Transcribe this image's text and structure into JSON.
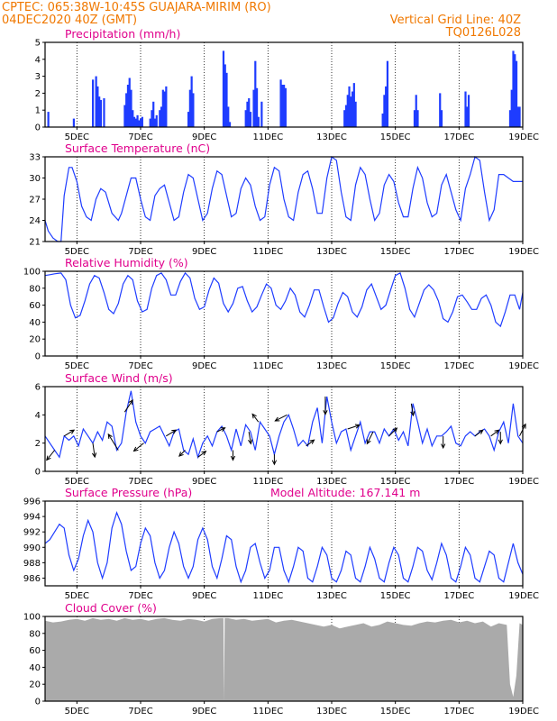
{
  "header": {
    "line1_left": "CPTEC:   065:38W-10:45S   GUAJARA-MIRIM (RO)",
    "line2_left": "04DEC2020 40Z (GMT)",
    "line2_right": "Vertical Grid Line: 40Z",
    "line3_right": "TQ0126L028"
  },
  "colors": {
    "header": "#f07800",
    "title": "#e0008c",
    "series": "#1e3cff",
    "cloud": "#aaaaaa",
    "wind_arrow": "#000000"
  },
  "x_axis": {
    "start_day": 4,
    "end_day": 19,
    "tick_labels": [
      "5DEC",
      "7DEC",
      "9DEC",
      "11DEC",
      "13DEC",
      "15DEC",
      "17DEC",
      "19DEC"
    ],
    "tick_days": [
      5,
      7,
      9,
      11,
      13,
      15,
      17,
      19
    ]
  },
  "chart_data": [
    {
      "type": "bar",
      "title": "Precipitation (mm/h)",
      "ylim": [
        0,
        5
      ],
      "yticks": [
        "0",
        "1",
        "2",
        "3",
        "4",
        "5"
      ],
      "grid": true,
      "x": [
        4.1,
        4.9,
        5.5,
        5.6,
        5.65,
        5.7,
        5.75,
        5.85,
        6.5,
        6.55,
        6.6,
        6.65,
        6.7,
        6.75,
        6.8,
        6.85,
        6.9,
        6.95,
        7.0,
        7.05,
        7.3,
        7.35,
        7.4,
        7.45,
        7.5,
        7.6,
        7.65,
        7.7,
        7.75,
        7.8,
        8.5,
        8.55,
        8.6,
        8.65,
        9.6,
        9.65,
        9.7,
        9.75,
        9.8,
        10.3,
        10.35,
        10.4,
        10.45,
        10.55,
        10.6,
        10.65,
        10.7,
        10.8,
        11.4,
        11.45,
        11.5,
        11.55,
        13.4,
        13.45,
        13.5,
        13.55,
        13.6,
        13.65,
        13.7,
        13.75,
        14.6,
        14.65,
        14.7,
        14.75,
        15.6,
        15.65,
        15.7,
        16.4,
        16.45,
        17.2,
        17.25,
        17.3,
        18.6,
        18.65,
        18.7,
        18.75,
        18.8,
        18.85,
        18.9
      ],
      "values": [
        0.9,
        0.5,
        2.8,
        3.0,
        2.4,
        1.8,
        1.6,
        1.7,
        1.3,
        2.0,
        2.5,
        2.9,
        2.2,
        1.0,
        0.6,
        0.5,
        0.7,
        0.4,
        0.5,
        0.6,
        0.5,
        1.0,
        1.5,
        0.5,
        0.7,
        1.0,
        1.2,
        2.2,
        2.1,
        2.4,
        0.9,
        2.2,
        3.0,
        2.0,
        4.5,
        3.7,
        3.2,
        1.2,
        0.3,
        1.0,
        1.5,
        1.7,
        0.9,
        2.2,
        3.9,
        2.3,
        0.6,
        1.5,
        2.8,
        2.5,
        2.5,
        2.3,
        1.0,
        1.3,
        1.9,
        2.4,
        1.8,
        2.1,
        2.6,
        1.5,
        0.8,
        1.9,
        2.4,
        3.9,
        1.0,
        1.9,
        1.0,
        2.0,
        1.0,
        2.1,
        1.2,
        1.9,
        1.0,
        2.2,
        4.5,
        4.3,
        3.9,
        1.2,
        1.2
      ]
    },
    {
      "type": "line",
      "title": "Surface Temperature (nC)",
      "ylim": [
        21,
        33
      ],
      "yticks": [
        "21",
        "24",
        "27",
        "30",
        "33"
      ],
      "grid": true,
      "x": [
        4.0,
        4.1,
        4.25,
        4.4,
        4.5,
        4.6,
        4.75,
        4.85,
        5.0,
        5.15,
        5.3,
        5.45,
        5.6,
        5.75,
        5.9,
        6.1,
        6.3,
        6.4,
        6.55,
        6.7,
        6.85,
        7.0,
        7.15,
        7.3,
        7.45,
        7.6,
        7.75,
        7.9,
        8.05,
        8.2,
        8.35,
        8.5,
        8.65,
        8.8,
        8.95,
        9.1,
        9.25,
        9.4,
        9.55,
        9.7,
        9.85,
        10.0,
        10.15,
        10.3,
        10.45,
        10.6,
        10.75,
        10.9,
        11.05,
        11.2,
        11.35,
        11.5,
        11.65,
        11.8,
        11.95,
        12.1,
        12.25,
        12.4,
        12.55,
        12.7,
        12.85,
        13.0,
        13.15,
        13.3,
        13.45,
        13.6,
        13.75,
        13.9,
        14.05,
        14.2,
        14.35,
        14.5,
        14.65,
        14.8,
        14.95,
        15.1,
        15.25,
        15.4,
        15.55,
        15.7,
        15.85,
        16.0,
        16.15,
        16.3,
        16.45,
        16.6,
        16.75,
        16.9,
        17.05,
        17.2,
        17.35,
        17.5,
        17.65,
        17.8,
        17.95,
        18.1,
        18.25,
        18.4,
        18.55,
        18.7,
        18.85,
        19.0
      ],
      "values": [
        24.0,
        22.5,
        21.5,
        21.0,
        21.0,
        27.5,
        31.5,
        31.5,
        29.5,
        26.0,
        24.5,
        24.0,
        27.0,
        28.5,
        28.0,
        25.0,
        24.0,
        25.0,
        27.5,
        30.0,
        30.0,
        27.0,
        24.5,
        24.0,
        27.5,
        28.5,
        29.0,
        26.5,
        24.0,
        24.5,
        28.0,
        30.5,
        30.0,
        27.0,
        24.0,
        25.0,
        28.5,
        31.0,
        30.5,
        27.5,
        24.5,
        25.0,
        28.5,
        30.0,
        29.0,
        26.0,
        24.0,
        24.5,
        29.0,
        31.5,
        31.0,
        27.0,
        24.5,
        24.0,
        28.0,
        30.5,
        31.0,
        28.5,
        25.0,
        25.0,
        30.0,
        33.0,
        32.5,
        28.0,
        24.5,
        24.0,
        29.0,
        31.5,
        30.5,
        27.0,
        24.0,
        25.0,
        29.0,
        30.5,
        29.5,
        26.5,
        24.5,
        24.5,
        28.5,
        31.5,
        30.0,
        26.5,
        24.5,
        25.0,
        29.0,
        30.5,
        28.0,
        25.5,
        24.0,
        28.5,
        30.5,
        33.0,
        32.5,
        28.0,
        24.0,
        25.5,
        30.5,
        30.5,
        30.0,
        29.5,
        29.5,
        29.5
      ]
    },
    {
      "type": "line",
      "title": "Relative Humidity (%)",
      "ylim": [
        0,
        100
      ],
      "yticks": [
        "0",
        "20",
        "40",
        "60",
        "80",
        "100"
      ],
      "grid": true,
      "x": [
        4.0,
        4.15,
        4.3,
        4.5,
        4.65,
        4.8,
        4.95,
        5.1,
        5.25,
        5.4,
        5.55,
        5.7,
        5.85,
        6.0,
        6.15,
        6.3,
        6.45,
        6.6,
        6.75,
        6.9,
        7.05,
        7.2,
        7.35,
        7.5,
        7.65,
        7.8,
        7.95,
        8.1,
        8.25,
        8.4,
        8.55,
        8.7,
        8.85,
        9.0,
        9.15,
        9.3,
        9.45,
        9.6,
        9.75,
        9.9,
        10.05,
        10.2,
        10.35,
        10.5,
        10.65,
        10.8,
        10.95,
        11.1,
        11.25,
        11.4,
        11.55,
        11.7,
        11.85,
        12.0,
        12.15,
        12.3,
        12.45,
        12.6,
        12.75,
        12.9,
        13.05,
        13.2,
        13.35,
        13.5,
        13.65,
        13.8,
        13.95,
        14.1,
        14.25,
        14.4,
        14.55,
        14.7,
        14.85,
        15.0,
        15.15,
        15.3,
        15.45,
        15.6,
        15.75,
        15.9,
        16.05,
        16.2,
        16.35,
        16.5,
        16.65,
        16.8,
        16.95,
        17.1,
        17.25,
        17.4,
        17.55,
        17.7,
        17.85,
        18.0,
        18.15,
        18.3,
        18.45,
        18.6,
        18.75,
        18.9,
        19.0
      ],
      "values": [
        95,
        96,
        97,
        98,
        90,
        60,
        45,
        48,
        65,
        85,
        95,
        92,
        75,
        55,
        50,
        62,
        85,
        95,
        90,
        65,
        52,
        55,
        80,
        95,
        98,
        90,
        72,
        72,
        88,
        98,
        92,
        68,
        55,
        58,
        78,
        92,
        86,
        62,
        52,
        62,
        80,
        82,
        65,
        52,
        58,
        72,
        85,
        80,
        60,
        55,
        65,
        80,
        72,
        52,
        46,
        60,
        78,
        78,
        58,
        40,
        45,
        62,
        75,
        70,
        52,
        46,
        58,
        78,
        85,
        70,
        55,
        60,
        78,
        95,
        98,
        80,
        55,
        46,
        62,
        78,
        84,
        78,
        65,
        44,
        40,
        52,
        70,
        72,
        64,
        55,
        55,
        68,
        72,
        60,
        40,
        35,
        52,
        72,
        72,
        55,
        75
      ]
    },
    {
      "type": "line",
      "title": "Surface Wind (m/s)",
      "ylim": [
        0,
        6
      ],
      "yticks": [
        "0",
        "2",
        "4",
        "6"
      ],
      "grid": true,
      "x": [
        4.0,
        4.15,
        4.3,
        4.45,
        4.6,
        4.75,
        4.9,
        5.05,
        5.2,
        5.35,
        5.5,
        5.65,
        5.8,
        5.95,
        6.1,
        6.25,
        6.4,
        6.55,
        6.7,
        6.85,
        7.0,
        7.15,
        7.3,
        7.45,
        7.6,
        7.75,
        7.9,
        8.05,
        8.2,
        8.35,
        8.5,
        8.65,
        8.8,
        8.95,
        9.1,
        9.25,
        9.4,
        9.55,
        9.7,
        9.85,
        10.0,
        10.15,
        10.3,
        10.45,
        10.6,
        10.75,
        10.9,
        11.05,
        11.2,
        11.35,
        11.5,
        11.65,
        11.8,
        11.95,
        12.1,
        12.25,
        12.4,
        12.55,
        12.7,
        12.85,
        13.0,
        13.15,
        13.3,
        13.45,
        13.6,
        13.75,
        13.9,
        14.05,
        14.2,
        14.35,
        14.5,
        14.65,
        14.8,
        14.95,
        15.1,
        15.25,
        15.4,
        15.55,
        15.7,
        15.85,
        16.0,
        16.15,
        16.3,
        16.45,
        16.6,
        16.75,
        16.9,
        17.05,
        17.2,
        17.35,
        17.5,
        17.65,
        17.8,
        17.95,
        18.1,
        18.25,
        18.4,
        18.55,
        18.7,
        18.85,
        19.0
      ],
      "values": [
        2.5,
        2.0,
        1.5,
        1.0,
        2.5,
        2.2,
        2.5,
        1.8,
        3.0,
        2.5,
        2.0,
        2.8,
        2.2,
        3.5,
        3.2,
        1.5,
        2.0,
        4.2,
        5.7,
        3.5,
        2.5,
        2.0,
        2.8,
        3.0,
        3.2,
        2.5,
        1.8,
        2.8,
        3.0,
        1.5,
        1.2,
        2.3,
        1.0,
        2.0,
        2.5,
        1.8,
        2.8,
        3.2,
        2.5,
        1.5,
        3.0,
        1.8,
        3.3,
        2.8,
        1.5,
        3.5,
        3.0,
        2.5,
        1.2,
        2.5,
        3.5,
        4.0,
        3.0,
        1.8,
        2.2,
        1.8,
        3.5,
        4.5,
        2.0,
        5.3,
        3.5,
        2.0,
        2.8,
        3.0,
        1.5,
        2.5,
        3.5,
        2.0,
        2.8,
        2.8,
        2.0,
        3.0,
        2.5,
        3.0,
        2.2,
        2.8,
        1.8,
        4.8,
        3.5,
        2.0,
        3.0,
        1.8,
        2.5,
        2.5,
        2.8,
        3.2,
        2.0,
        1.8,
        2.5,
        2.8,
        2.5,
        2.8,
        3.0,
        2.5,
        1.5,
        2.8,
        3.5,
        2.0,
        4.8,
        2.5,
        2.0
      ],
      "arrows": [
        {
          "x": 4.3,
          "u": -0.4,
          "v": -0.5
        },
        {
          "x": 4.6,
          "u": 0.5,
          "v": 0.3
        },
        {
          "x": 5.5,
          "u": 0.1,
          "v": -0.7
        },
        {
          "x": 6.3,
          "u": -0.5,
          "v": 0.8
        },
        {
          "x": 6.5,
          "u": 0.4,
          "v": 0.6
        },
        {
          "x": 7.1,
          "u": -0.5,
          "v": -0.4
        },
        {
          "x": 7.8,
          "u": 0.5,
          "v": 0.3
        },
        {
          "x": 8.4,
          "u": -0.3,
          "v": -0.3
        },
        {
          "x": 8.8,
          "u": 0.4,
          "v": 0.3
        },
        {
          "x": 9.4,
          "u": 0.4,
          "v": 0.2
        },
        {
          "x": 9.9,
          "u": 0.0,
          "v": -0.5
        },
        {
          "x": 10.4,
          "u": 0.1,
          "v": -0.6
        },
        {
          "x": 10.7,
          "u": -0.3,
          "v": 0.4
        },
        {
          "x": 11.2,
          "u": 0.0,
          "v": -0.5
        },
        {
          "x": 11.6,
          "u": -0.6,
          "v": -0.3
        },
        {
          "x": 12.2,
          "u": 0.4,
          "v": 0.3
        },
        {
          "x": 12.8,
          "u": 0.0,
          "v": -0.9
        },
        {
          "x": 13.5,
          "u": 0.6,
          "v": 0.2
        },
        {
          "x": 14.3,
          "u": -0.3,
          "v": -0.6
        },
        {
          "x": 14.8,
          "u": 0.4,
          "v": 0.4
        },
        {
          "x": 15.5,
          "u": 0.1,
          "v": -0.6
        },
        {
          "x": 16.5,
          "u": 0.0,
          "v": -0.6
        },
        {
          "x": 17.5,
          "u": 0.4,
          "v": 0.3
        },
        {
          "x": 18.0,
          "u": 0.4,
          "v": 0.3
        },
        {
          "x": 18.3,
          "u": 0.0,
          "v": -0.6
        },
        {
          "x": 18.9,
          "u": 0.3,
          "v": 0.6
        }
      ]
    },
    {
      "type": "line",
      "title": "Surface Pressure (hPa)",
      "subtitle": "Model Altitude: 167.141 m",
      "ylim": [
        985,
        996
      ],
      "yticks": [
        "986",
        "988",
        "990",
        "992",
        "994",
        "996"
      ],
      "grid": true,
      "x": [
        4.0,
        4.15,
        4.3,
        4.45,
        4.6,
        4.75,
        4.9,
        5.05,
        5.2,
        5.35,
        5.5,
        5.65,
        5.8,
        5.95,
        6.1,
        6.25,
        6.4,
        6.55,
        6.7,
        6.85,
        7.0,
        7.15,
        7.3,
        7.45,
        7.6,
        7.75,
        7.9,
        8.05,
        8.2,
        8.35,
        8.5,
        8.65,
        8.8,
        8.95,
        9.1,
        9.25,
        9.4,
        9.55,
        9.7,
        9.85,
        10.0,
        10.15,
        10.3,
        10.45,
        10.6,
        10.75,
        10.9,
        11.05,
        11.2,
        11.35,
        11.5,
        11.65,
        11.8,
        11.95,
        12.1,
        12.25,
        12.4,
        12.55,
        12.7,
        12.85,
        13.0,
        13.15,
        13.3,
        13.45,
        13.6,
        13.75,
        13.9,
        14.05,
        14.2,
        14.35,
        14.5,
        14.65,
        14.8,
        14.95,
        15.1,
        15.25,
        15.4,
        15.55,
        15.7,
        15.85,
        16.0,
        16.15,
        16.3,
        16.45,
        16.6,
        16.75,
        16.9,
        17.05,
        17.2,
        17.35,
        17.5,
        17.65,
        17.8,
        17.95,
        18.1,
        18.25,
        18.4,
        18.55,
        18.7,
        18.85,
        19.0
      ],
      "values": [
        990.5,
        991.0,
        992.0,
        993.0,
        992.5,
        989.0,
        987.0,
        988.5,
        991.5,
        993.5,
        992.0,
        988.0,
        986.0,
        988.0,
        992.5,
        994.5,
        993.0,
        989.5,
        987.0,
        987.5,
        990.5,
        992.5,
        991.5,
        988.0,
        986.0,
        987.0,
        990.0,
        992.0,
        990.5,
        987.5,
        986.0,
        987.5,
        991.0,
        992.5,
        991.0,
        987.5,
        986.0,
        988.5,
        991.5,
        991.0,
        987.5,
        985.5,
        987.0,
        990.0,
        990.5,
        988.0,
        986.0,
        987.0,
        990.0,
        990.0,
        987.0,
        985.5,
        987.5,
        990.0,
        989.5,
        986.0,
        985.5,
        987.5,
        990.0,
        989.0,
        986.0,
        985.5,
        987.0,
        989.5,
        989.0,
        986.0,
        985.5,
        987.5,
        990.0,
        988.5,
        986.0,
        985.5,
        988.0,
        990.0,
        989.0,
        986.0,
        985.5,
        987.5,
        990.0,
        989.5,
        987.0,
        985.8,
        988.0,
        990.5,
        989.0,
        986.0,
        985.5,
        987.5,
        990.0,
        989.0,
        986.0,
        985.5,
        987.5,
        989.5,
        989.0,
        986.0,
        985.5,
        988.0,
        990.5,
        988.0,
        986.5
      ]
    },
    {
      "type": "area",
      "title": "Cloud Cover (%)",
      "ylim": [
        0,
        100
      ],
      "yticks": [
        "0",
        "20",
        "40",
        "60",
        "80",
        "100"
      ],
      "grid": true,
      "x": [
        4.0,
        4.25,
        4.5,
        4.75,
        5.0,
        5.25,
        5.5,
        5.75,
        6.0,
        6.25,
        6.5,
        6.75,
        7.0,
        7.25,
        7.5,
        7.75,
        8.0,
        8.25,
        8.5,
        8.75,
        9.0,
        9.25,
        9.5,
        9.6,
        9.62,
        9.64,
        9.75,
        10.0,
        10.25,
        10.5,
        10.75,
        11.0,
        11.25,
        11.5,
        11.75,
        12.0,
        12.25,
        12.5,
        12.75,
        13.0,
        13.25,
        13.5,
        13.75,
        14.0,
        14.25,
        14.5,
        14.75,
        15.0,
        15.25,
        15.5,
        15.75,
        16.0,
        16.25,
        16.5,
        16.75,
        17.0,
        17.25,
        17.5,
        17.75,
        18.0,
        18.25,
        18.5,
        18.6,
        18.7,
        18.8,
        18.9,
        19.0
      ],
      "values": [
        95,
        93,
        94,
        96,
        97,
        95,
        98,
        96,
        97,
        95,
        98,
        96,
        97,
        95,
        97,
        98,
        96,
        95,
        97,
        96,
        94,
        97,
        98,
        98,
        0,
        98,
        98,
        96,
        97,
        95,
        96,
        97,
        93,
        95,
        96,
        94,
        92,
        90,
        88,
        90,
        86,
        88,
        90,
        92,
        88,
        90,
        94,
        92,
        90,
        89,
        92,
        94,
        93,
        95,
        96,
        93,
        95,
        92,
        94,
        88,
        92,
        90,
        20,
        5,
        30,
        92,
        90
      ]
    }
  ]
}
